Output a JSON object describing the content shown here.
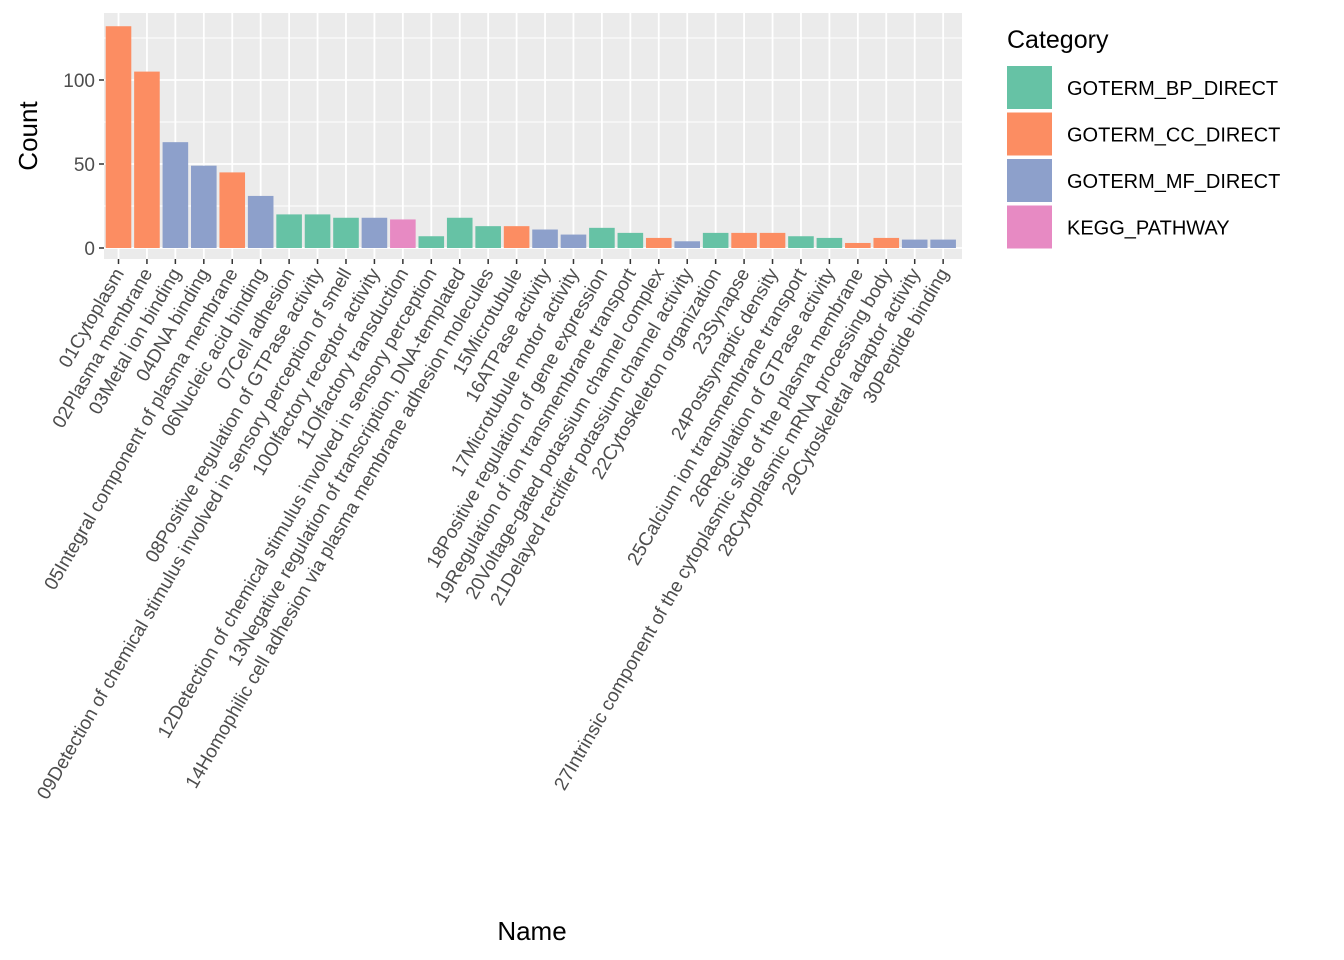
{
  "chart_data": {
    "type": "bar",
    "xlabel": "Name",
    "ylabel": "Count",
    "ylim": [
      0,
      138
    ],
    "yticks": [
      0,
      50,
      100
    ],
    "grid": true,
    "legend_position": "right",
    "legend": {
      "title": "Category",
      "entries": [
        {
          "name": "GOTERM_BP_DIRECT",
          "color": "#66c2a5"
        },
        {
          "name": "GOTERM_CC_DIRECT",
          "color": "#fc8d62"
        },
        {
          "name": "GOTERM_MF_DIRECT",
          "color": "#8da0cb"
        },
        {
          "name": "KEGG_PATHWAY",
          "color": "#e78ac3"
        }
      ]
    },
    "categories": [
      "01Cytoplasm",
      "02Plasma membrane",
      "03Metal ion binding",
      "04DNA binding",
      "05Integral component of plasma membrane",
      "06Nucleic acid binding",
      "07Cell adhesion",
      "08Positive regulation of GTPase activity",
      "09Detection of chemical stimulus involved in sensory perception of smell",
      "10Olfactory receptor activity",
      "11Olfactory transduction",
      "12Detection of chemical stimulus involved in sensory perception",
      "13Negative regulation of transcription, DNA-templated",
      "14Homophilic cell adhesion via plasma membrane adhesion molecules",
      "15Microtubule",
      "16ATPase activity",
      "17Microtubule motor activity",
      "18Positive regulation of gene expression",
      "19Regulation of ion transmembrane transport",
      "20Voltage-gated potassium channel complex",
      "21Delayed rectifier potassium channel activity",
      "22Cytoskeleton organization",
      "23Synapse",
      "24Postsynaptic density",
      "25Calcium ion transmembrane transport",
      "26Regulation of GTPase activity",
      "27Intrinsic component of the cytoplasmic side of the plasma membrane",
      "28Cytoplasmic mRNA processing body",
      "29Cytoskeletal adaptor activity",
      "30Peptide binding"
    ],
    "values": [
      132,
      105,
      63,
      49,
      45,
      31,
      20,
      20,
      18,
      18,
      17,
      7,
      18,
      13,
      13,
      11,
      8,
      12,
      9,
      6,
      4,
      9,
      9,
      9,
      7,
      6,
      3,
      6,
      5,
      5
    ],
    "category_group": [
      "GOTERM_CC_DIRECT",
      "GOTERM_CC_DIRECT",
      "GOTERM_MF_DIRECT",
      "GOTERM_MF_DIRECT",
      "GOTERM_CC_DIRECT",
      "GOTERM_MF_DIRECT",
      "GOTERM_BP_DIRECT",
      "GOTERM_BP_DIRECT",
      "GOTERM_BP_DIRECT",
      "GOTERM_MF_DIRECT",
      "KEGG_PATHWAY",
      "GOTERM_BP_DIRECT",
      "GOTERM_BP_DIRECT",
      "GOTERM_BP_DIRECT",
      "GOTERM_CC_DIRECT",
      "GOTERM_MF_DIRECT",
      "GOTERM_MF_DIRECT",
      "GOTERM_BP_DIRECT",
      "GOTERM_BP_DIRECT",
      "GOTERM_CC_DIRECT",
      "GOTERM_MF_DIRECT",
      "GOTERM_BP_DIRECT",
      "GOTERM_CC_DIRECT",
      "GOTERM_CC_DIRECT",
      "GOTERM_BP_DIRECT",
      "GOTERM_BP_DIRECT",
      "GOTERM_CC_DIRECT",
      "GOTERM_CC_DIRECT",
      "GOTERM_MF_DIRECT",
      "GOTERM_MF_DIRECT"
    ],
    "panel_background": "#ebebeb",
    "grid_color": "#ffffff"
  }
}
